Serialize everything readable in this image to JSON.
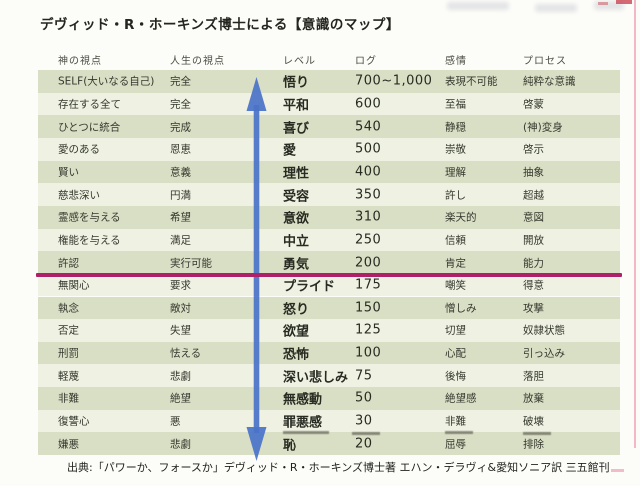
{
  "title": "デヴィッド・R・ホーキンズ博士による【意識のマップ】",
  "source_line": "出典:「パワーか、フォースか」デヴィッド・R・ホーキンズ博士著 エハン・デラヴィ&愛知ソニア訳 三五館刊",
  "table": {
    "columns": [
      "神の視点",
      "人生の視点",
      "レベル",
      "ログ",
      "感情",
      "プロセス"
    ],
    "rows": [
      {
        "god_view": "SELF(大いなる自己)",
        "life_view": "完全",
        "level": "悟り",
        "log": "700~1,000",
        "emotion": "表現不可能",
        "process": "純粋な意識"
      },
      {
        "god_view": "存在する全て",
        "life_view": "完全",
        "level": "平和",
        "log": "600",
        "emotion": "至福",
        "process": "啓蒙"
      },
      {
        "god_view": "ひとつに統合",
        "life_view": "完成",
        "level": "喜び",
        "log": "540",
        "emotion": "静穏",
        "process": "(神)変身"
      },
      {
        "god_view": "愛のある",
        "life_view": "恩恵",
        "level": "愛",
        "log": "500",
        "emotion": "崇敬",
        "process": "啓示"
      },
      {
        "god_view": "賢い",
        "life_view": "意義",
        "level": "理性",
        "log": "400",
        "emotion": "理解",
        "process": "抽象"
      },
      {
        "god_view": "慈悲深い",
        "life_view": "円満",
        "level": "受容",
        "log": "350",
        "emotion": "許し",
        "process": "超越"
      },
      {
        "god_view": "霊感を与える",
        "life_view": "希望",
        "level": "意欲",
        "log": "310",
        "emotion": "楽天的",
        "process": "意図"
      },
      {
        "god_view": "権能を与える",
        "life_view": "満足",
        "level": "中立",
        "log": "250",
        "emotion": "信頼",
        "process": "開放"
      },
      {
        "god_view": "許認",
        "life_view": "実行可能",
        "level": "勇気",
        "log": "200",
        "emotion": "肯定",
        "process": "能力"
      },
      {
        "god_view": "無関心",
        "life_view": "要求",
        "level": "プライド",
        "log": "175",
        "emotion": "嘲笑",
        "process": "得意"
      },
      {
        "god_view": "執念",
        "life_view": "敵対",
        "level": "怒り",
        "log": "150",
        "emotion": "憎しみ",
        "process": "攻撃"
      },
      {
        "god_view": "否定",
        "life_view": "失望",
        "level": "欲望",
        "log": "125",
        "emotion": "切望",
        "process": "奴隷状態"
      },
      {
        "god_view": "刑罰",
        "life_view": "怯える",
        "level": "恐怖",
        "log": "100",
        "emotion": "心配",
        "process": "引っ込み"
      },
      {
        "god_view": "軽蔑",
        "life_view": "悲劇",
        "level": "深い悲しみ",
        "log": "75",
        "emotion": "後悔",
        "process": "落胆"
      },
      {
        "god_view": "非難",
        "life_view": "絶望",
        "level": "無感動",
        "log": "50",
        "emotion": "絶望感",
        "process": "放棄"
      },
      {
        "god_view": "復讐心",
        "life_view": "悪",
        "level": "罪悪感",
        "log": "30",
        "emotion": "非難",
        "process": "破壊"
      },
      {
        "god_view": "嫌悪",
        "life_view": "悲劇",
        "level": "恥",
        "log": "20",
        "emotion": "屈辱",
        "process": "排除"
      }
    ],
    "threshold": {
      "below_level": "勇気",
      "log_value": "200"
    }
  },
  "colors": {
    "stripe_dark": "#d9dfc5",
    "stripe_light": "#eff1e2",
    "threshold_line": "#ae2168",
    "arrow_blue": "#4a73c8"
  },
  "icons": {
    "arrow": "up-down-arrow"
  }
}
